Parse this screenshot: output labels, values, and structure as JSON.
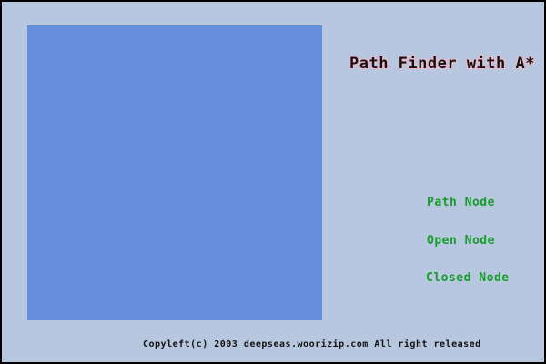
{
  "title": "Path Finder with A*",
  "legend": {
    "path_node": "Path Node",
    "open_node": "Open Node",
    "closed_node": "Closed Node"
  },
  "footer": "Copyleft(c) 2003 deepseas.woorizip.com All right released",
  "colors": {
    "border": "#000000",
    "background": "#b7c7df",
    "grid": "#668fdb",
    "legend_text": "#179c2b",
    "title_text": "#121212",
    "title_outline": "#f2b8c8"
  }
}
